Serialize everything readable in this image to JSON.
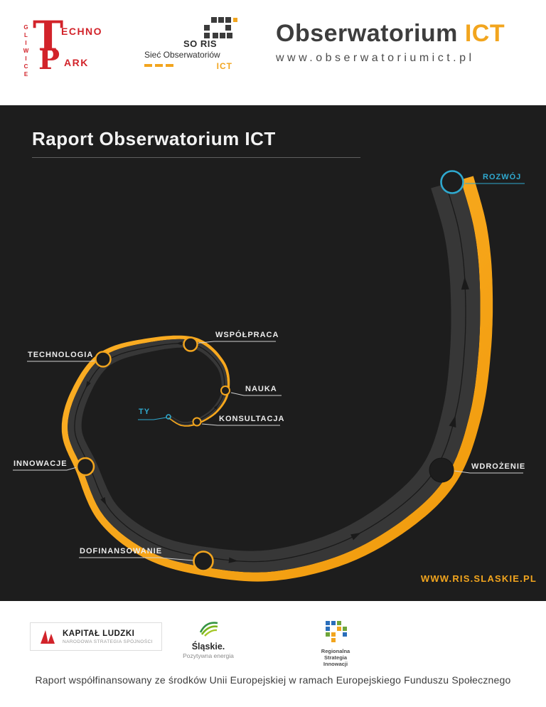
{
  "header": {
    "technopark": {
      "city": "GLIWICE",
      "monogram_top": "T",
      "monogram_bottom": "P",
      "line1": "ECHNO",
      "line2": "ARK"
    },
    "soris": {
      "name": "SO RIS",
      "subtitle": "Sieć Obserwatoriów",
      "tag": "ICT"
    },
    "brand": {
      "title": "Obserwatorium",
      "accent": "ICT",
      "url": "www.obserwatoriumict.pl"
    }
  },
  "poster": {
    "title": "Raport Obserwatorium ICT",
    "website": "WWW.RIS.SLASKIE.PL",
    "labels": {
      "rozwoj": "ROZWÓJ",
      "wspolpraca": "WSPÓŁPRACA",
      "nauka": "NAUKA",
      "konsultacja": "KONSULTACJA",
      "ty": "TY",
      "technologia": "TECHNOLOGIA",
      "innowacje": "INNOWACJE",
      "dofinansowanie": "DOFINANSOWANIE",
      "wdrozenie": "WDROŻENIE"
    },
    "sequence": [
      "TY",
      "KONSULTACJA",
      "NAUKA",
      "WSPÓŁPRACA",
      "TECHNOLOGIA",
      "INNOWACJE",
      "DOFINANSOWANIE",
      "WDROŻENIE",
      "ROZWÓJ"
    ]
  },
  "footer": {
    "kapital": {
      "title": "KAPITAŁ LUDZKI",
      "subtitle": "NARODOWA STRATEGIA SPÓJNOŚCI"
    },
    "slaskie": {
      "title": "Śląskie.",
      "subtitle": "Pozytywna energia"
    },
    "rsi": {
      "line1": "Regionalna",
      "line2": "Strategia",
      "line3": "Innowacji"
    },
    "disclaimer": "Raport współfinansowany ze środków Unii Europejskiej w ramach Europejskiego Funduszu Społecznego"
  },
  "colors": {
    "accent": "#F2A51E",
    "cyan": "#2FA9CF",
    "panel": "#1D1D1D",
    "band": "#373737",
    "guide": "#1A1A1A"
  }
}
